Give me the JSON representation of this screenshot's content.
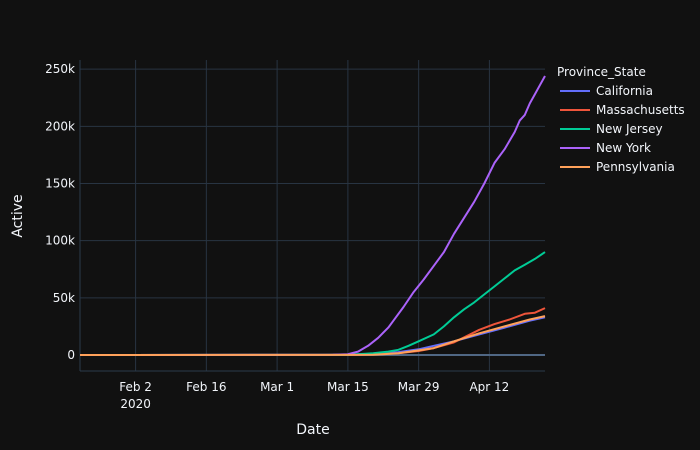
{
  "chart_data": {
    "type": "line",
    "xlabel": "Date",
    "ylabel": "Active",
    "x_ticks": [
      {
        "date": "2020-02-02",
        "label": "Feb 2",
        "label2": "2020"
      },
      {
        "date": "2020-02-16",
        "label": "Feb 16",
        "label2": ""
      },
      {
        "date": "2020-03-01",
        "label": "Mar 1",
        "label2": ""
      },
      {
        "date": "2020-03-15",
        "label": "Mar 15",
        "label2": ""
      },
      {
        "date": "2020-03-29",
        "label": "Mar 29",
        "label2": ""
      },
      {
        "date": "2020-04-12",
        "label": "Apr 12",
        "label2": ""
      }
    ],
    "y_ticks": [
      {
        "value": 0,
        "label": "0"
      },
      {
        "value": 50000,
        "label": "50k"
      },
      {
        "value": 100000,
        "label": "100k"
      },
      {
        "value": 150000,
        "label": "150k"
      },
      {
        "value": 200000,
        "label": "200k"
      },
      {
        "value": 250000,
        "label": "250k"
      }
    ],
    "xlim": [
      "2020-01-22",
      "2020-04-23"
    ],
    "ylim": [
      -14000,
      258000
    ],
    "grid": true,
    "legend": {
      "title": "Province_State",
      "placement": "right"
    },
    "series": [
      {
        "name": "California",
        "color": "#636efa",
        "points": [
          [
            "2020-01-22",
            0
          ],
          [
            "2020-03-10",
            100
          ],
          [
            "2020-03-15",
            300
          ],
          [
            "2020-03-20",
            1000
          ],
          [
            "2020-03-25",
            2500
          ],
          [
            "2020-03-29",
            5000
          ],
          [
            "2020-04-01",
            8000
          ],
          [
            "2020-04-05",
            12000
          ],
          [
            "2020-04-10",
            18000
          ],
          [
            "2020-04-15",
            24000
          ],
          [
            "2020-04-20",
            30000
          ],
          [
            "2020-04-23",
            33000
          ]
        ]
      },
      {
        "name": "Massachusetts",
        "color": "#ef553b",
        "points": [
          [
            "2020-01-22",
            0
          ],
          [
            "2020-03-15",
            100
          ],
          [
            "2020-03-20",
            500
          ],
          [
            "2020-03-25",
            1500
          ],
          [
            "2020-03-29",
            3500
          ],
          [
            "2020-04-01",
            6000
          ],
          [
            "2020-04-05",
            11000
          ],
          [
            "2020-04-10",
            22000
          ],
          [
            "2020-04-13",
            27000
          ],
          [
            "2020-04-16",
            31000
          ],
          [
            "2020-04-19",
            36000
          ],
          [
            "2020-04-21",
            37000
          ],
          [
            "2020-04-23",
            41000
          ]
        ]
      },
      {
        "name": "New Jersey",
        "color": "#00cc96",
        "points": [
          [
            "2020-01-22",
            0
          ],
          [
            "2020-03-15",
            100
          ],
          [
            "2020-03-20",
            1500
          ],
          [
            "2020-03-23",
            3000
          ],
          [
            "2020-03-25",
            4500
          ],
          [
            "2020-03-27",
            8000
          ],
          [
            "2020-03-29",
            12000
          ],
          [
            "2020-04-01",
            18000
          ],
          [
            "2020-04-03",
            25000
          ],
          [
            "2020-04-05",
            33000
          ],
          [
            "2020-04-07",
            40000
          ],
          [
            "2020-04-09",
            46000
          ],
          [
            "2020-04-11",
            53000
          ],
          [
            "2020-04-13",
            60000
          ],
          [
            "2020-04-15",
            67000
          ],
          [
            "2020-04-17",
            74000
          ],
          [
            "2020-04-19",
            79000
          ],
          [
            "2020-04-21",
            84000
          ],
          [
            "2020-04-23",
            90000
          ]
        ]
      },
      {
        "name": "New York",
        "color": "#ab63fa",
        "points": [
          [
            "2020-01-22",
            0
          ],
          [
            "2020-03-12",
            200
          ],
          [
            "2020-03-15",
            700
          ],
          [
            "2020-03-17",
            3000
          ],
          [
            "2020-03-19",
            8000
          ],
          [
            "2020-03-21",
            15000
          ],
          [
            "2020-03-23",
            24000
          ],
          [
            "2020-03-24",
            30000
          ],
          [
            "2020-03-26",
            42000
          ],
          [
            "2020-03-28",
            55000
          ],
          [
            "2020-03-30",
            66000
          ],
          [
            "2020-04-01",
            78000
          ],
          [
            "2020-04-03",
            90000
          ],
          [
            "2020-04-05",
            106000
          ],
          [
            "2020-04-07",
            120000
          ],
          [
            "2020-04-09",
            134000
          ],
          [
            "2020-04-11",
            150000
          ],
          [
            "2020-04-13",
            168000
          ],
          [
            "2020-04-15",
            180000
          ],
          [
            "2020-04-17",
            195000
          ],
          [
            "2020-04-18",
            205000
          ],
          [
            "2020-04-19",
            210000
          ],
          [
            "2020-04-20",
            220000
          ],
          [
            "2020-04-21",
            228000
          ],
          [
            "2020-04-22",
            236000
          ],
          [
            "2020-04-23",
            244000
          ]
        ]
      },
      {
        "name": "Pennsylvania",
        "color": "#ffa15a",
        "points": [
          [
            "2020-01-22",
            0
          ],
          [
            "2020-03-15",
            50
          ],
          [
            "2020-03-20",
            200
          ],
          [
            "2020-03-25",
            1500
          ],
          [
            "2020-03-29",
            4000
          ],
          [
            "2020-04-01",
            6000
          ],
          [
            "2020-04-05",
            12000
          ],
          [
            "2020-04-10",
            19000
          ],
          [
            "2020-04-15",
            25000
          ],
          [
            "2020-04-20",
            31000
          ],
          [
            "2020-04-23",
            34000
          ]
        ]
      }
    ]
  }
}
